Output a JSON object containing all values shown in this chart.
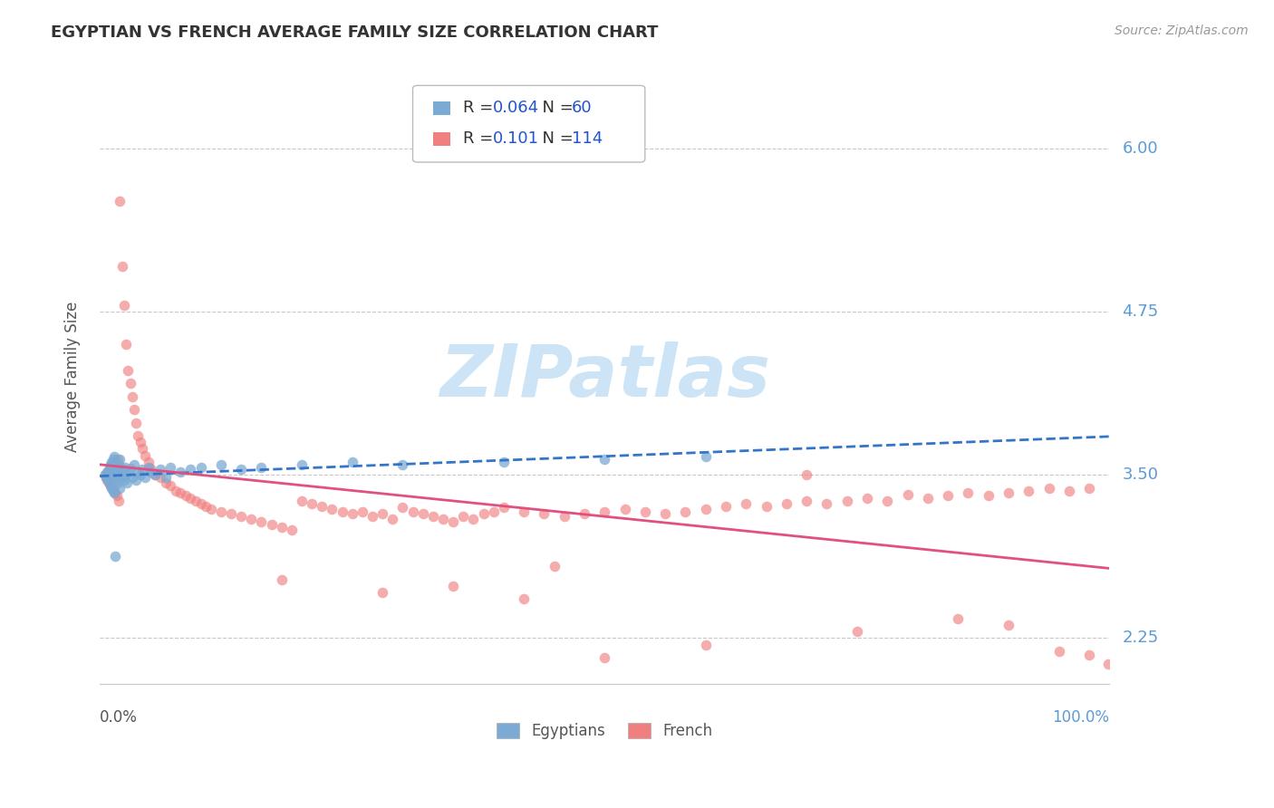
{
  "title": "EGYPTIAN VS FRENCH AVERAGE FAMILY SIZE CORRELATION CHART",
  "source": "Source: ZipAtlas.com",
  "ylabel": "Average Family Size",
  "yticks": [
    2.25,
    3.5,
    4.75,
    6.0
  ],
  "egyptian_color": "#7baad4",
  "french_color": "#f08080",
  "watermark_text": "ZIPatlas",
  "watermark_color": "#cce4f5",
  "title_color": "#333333",
  "source_color": "#999999",
  "ylabel_color": "#555555",
  "right_tick_color": "#5b9bd5",
  "grid_color": "#c8c8c8",
  "xlim": [
    0.0,
    1.0
  ],
  "ylim": [
    1.9,
    6.6
  ],
  "legend_box_color": "#dddddd",
  "legend_r_color": "#333333",
  "legend_n_color": "#2255cc",
  "egyptian_R": 0.064,
  "french_R": 0.101,
  "egyptian_N": 60,
  "french_N": 114,
  "eg_x": [
    0.005,
    0.006,
    0.007,
    0.008,
    0.009,
    0.01,
    0.01,
    0.011,
    0.011,
    0.012,
    0.012,
    0.013,
    0.013,
    0.014,
    0.014,
    0.015,
    0.015,
    0.016,
    0.016,
    0.017,
    0.017,
    0.018,
    0.018,
    0.019,
    0.02,
    0.02,
    0.021,
    0.022,
    0.023,
    0.024,
    0.025,
    0.026,
    0.027,
    0.028,
    0.03,
    0.032,
    0.034,
    0.036,
    0.038,
    0.04,
    0.042,
    0.045,
    0.048,
    0.05,
    0.055,
    0.06,
    0.065,
    0.07,
    0.08,
    0.09,
    0.1,
    0.12,
    0.14,
    0.16,
    0.2,
    0.25,
    0.3,
    0.4,
    0.5,
    0.6
  ],
  "eg_y": [
    3.5,
    3.48,
    3.52,
    3.46,
    3.53,
    3.44,
    3.56,
    3.42,
    3.58,
    3.4,
    3.6,
    3.38,
    3.62,
    3.36,
    3.64,
    2.88,
    3.5,
    3.54,
    3.46,
    3.52,
    3.48,
    3.56,
    3.44,
    3.58,
    3.4,
    3.62,
    3.52,
    3.48,
    3.54,
    3.46,
    3.56,
    3.5,
    3.44,
    3.52,
    3.55,
    3.48,
    3.58,
    3.46,
    3.52,
    3.5,
    3.54,
    3.48,
    3.56,
    3.52,
    3.5,
    3.54,
    3.48,
    3.56,
    3.52,
    3.54,
    3.56,
    3.58,
    3.54,
    3.56,
    3.58,
    3.6,
    3.58,
    3.6,
    3.62,
    3.64
  ],
  "fr_x": [
    0.005,
    0.006,
    0.007,
    0.008,
    0.009,
    0.01,
    0.011,
    0.012,
    0.013,
    0.014,
    0.015,
    0.016,
    0.017,
    0.018,
    0.019,
    0.02,
    0.022,
    0.024,
    0.026,
    0.028,
    0.03,
    0.032,
    0.034,
    0.036,
    0.038,
    0.04,
    0.042,
    0.045,
    0.048,
    0.05,
    0.055,
    0.06,
    0.065,
    0.07,
    0.075,
    0.08,
    0.085,
    0.09,
    0.095,
    0.1,
    0.105,
    0.11,
    0.12,
    0.13,
    0.14,
    0.15,
    0.16,
    0.17,
    0.18,
    0.19,
    0.2,
    0.21,
    0.22,
    0.23,
    0.24,
    0.25,
    0.26,
    0.27,
    0.28,
    0.29,
    0.3,
    0.31,
    0.32,
    0.33,
    0.34,
    0.35,
    0.36,
    0.37,
    0.38,
    0.39,
    0.4,
    0.42,
    0.44,
    0.46,
    0.48,
    0.5,
    0.52,
    0.54,
    0.56,
    0.58,
    0.6,
    0.62,
    0.64,
    0.66,
    0.68,
    0.7,
    0.72,
    0.74,
    0.76,
    0.78,
    0.8,
    0.82,
    0.84,
    0.86,
    0.88,
    0.9,
    0.92,
    0.94,
    0.96,
    0.98,
    0.5,
    0.35,
    0.42,
    0.28,
    0.18,
    0.45,
    0.6,
    0.75,
    0.9,
    0.85,
    0.7,
    0.95,
    0.98,
    0.999
  ],
  "fr_y": [
    3.5,
    3.48,
    3.46,
    3.52,
    3.44,
    3.54,
    3.42,
    3.56,
    3.4,
    3.58,
    3.36,
    3.6,
    3.34,
    3.62,
    3.3,
    5.6,
    5.1,
    4.8,
    4.5,
    4.3,
    4.2,
    4.1,
    4.0,
    3.9,
    3.8,
    3.75,
    3.7,
    3.65,
    3.6,
    3.55,
    3.5,
    3.48,
    3.44,
    3.42,
    3.38,
    3.36,
    3.34,
    3.32,
    3.3,
    3.28,
    3.26,
    3.24,
    3.22,
    3.2,
    3.18,
    3.16,
    3.14,
    3.12,
    3.1,
    3.08,
    3.3,
    3.28,
    3.26,
    3.24,
    3.22,
    3.2,
    3.22,
    3.18,
    3.2,
    3.16,
    3.25,
    3.22,
    3.2,
    3.18,
    3.16,
    3.14,
    3.18,
    3.16,
    3.2,
    3.22,
    3.25,
    3.22,
    3.2,
    3.18,
    3.2,
    3.22,
    3.24,
    3.22,
    3.2,
    3.22,
    3.24,
    3.26,
    3.28,
    3.26,
    3.28,
    3.3,
    3.28,
    3.3,
    3.32,
    3.3,
    3.35,
    3.32,
    3.34,
    3.36,
    3.34,
    3.36,
    3.38,
    3.4,
    3.38,
    3.4,
    2.1,
    2.65,
    2.55,
    2.6,
    2.7,
    2.8,
    2.2,
    2.3,
    2.35,
    2.4,
    3.5,
    2.15,
    2.12,
    2.05
  ]
}
